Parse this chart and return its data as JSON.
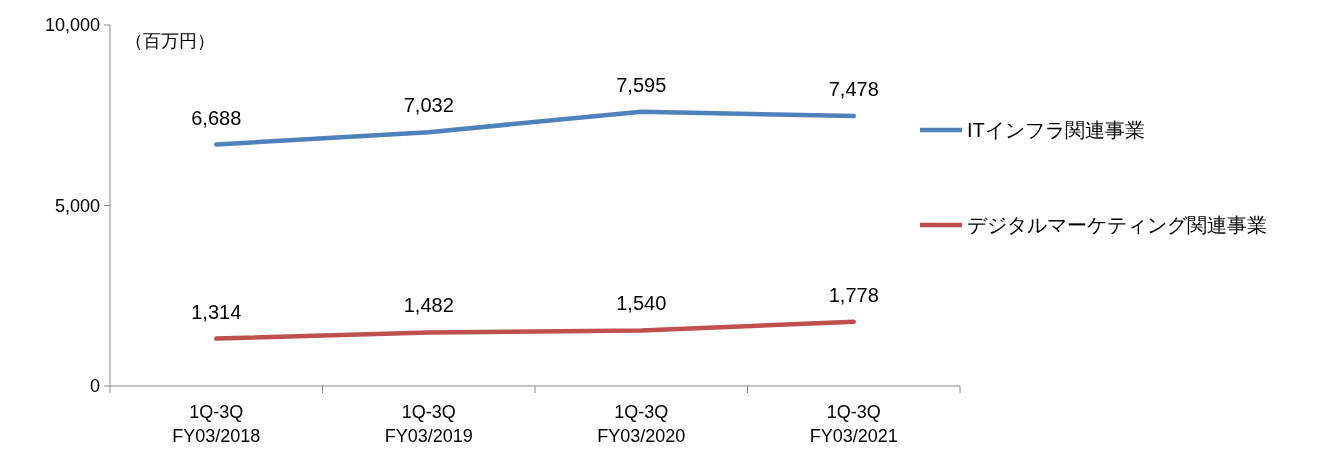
{
  "chart_data": {
    "type": "line",
    "ylabel": "（百万円）",
    "categories": [
      "1Q-3Q\nFY03/2018",
      "1Q-3Q\nFY03/2019",
      "1Q-3Q\nFY03/2020",
      "1Q-3Q\nFY03/2021"
    ],
    "ylim": [
      0,
      10000
    ],
    "yticks": [
      {
        "value": 0,
        "label": "0"
      },
      {
        "value": 5000,
        "label": "5,000"
      },
      {
        "value": 10000,
        "label": "10,000"
      }
    ],
    "grid": false,
    "legend": "right",
    "line_style": "solid",
    "series": [
      {
        "name": "ITインフラ関連事業",
        "color": "#4f81bd",
        "values": [
          6688,
          7032,
          7595,
          7478
        ],
        "value_labels": [
          "6,688",
          "7,032",
          "7,595",
          "7,478"
        ]
      },
      {
        "name": "デジタルマーケティング関連事業",
        "color": "#c0504d",
        "values": [
          1314,
          1482,
          1540,
          1778
        ],
        "value_labels": [
          "1,314",
          "1,482",
          "1,540",
          "1,778"
        ]
      }
    ]
  }
}
